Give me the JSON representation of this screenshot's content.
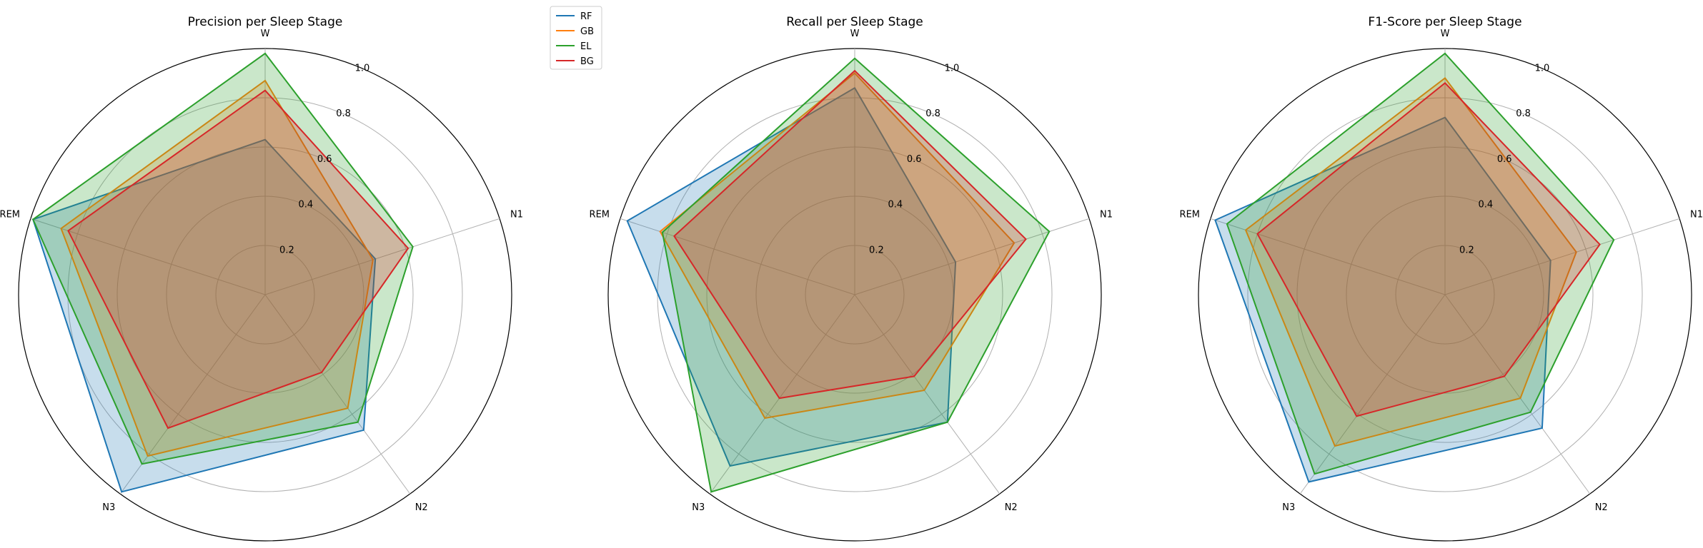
{
  "chart_data": [
    {
      "type": "radar",
      "title": "Precision per Sleep Stage",
      "categories": [
        "W",
        "N1",
        "N2",
        "N3",
        "REM"
      ],
      "rlim": [
        0,
        1.0
      ],
      "rticks": [
        "0.2",
        "0.4",
        "0.6",
        "0.8",
        "1.0"
      ],
      "series": [
        {
          "name": "RF",
          "color": "#1f77b4",
          "values": [
            0.63,
            0.47,
            0.68,
            0.99,
            0.99
          ]
        },
        {
          "name": "GB",
          "color": "#ff7f0e",
          "values": [
            0.87,
            0.46,
            0.57,
            0.81,
            0.87
          ]
        },
        {
          "name": "EL",
          "color": "#2ca02c",
          "values": [
            0.98,
            0.63,
            0.64,
            0.85,
            0.99
          ]
        },
        {
          "name": "BG",
          "color": "#d62728",
          "values": [
            0.83,
            0.61,
            0.39,
            0.67,
            0.84
          ]
        }
      ]
    },
    {
      "type": "radar",
      "title": "Recall per Sleep Stage",
      "categories": [
        "W",
        "N1",
        "N2",
        "N3",
        "REM"
      ],
      "rlim": [
        0,
        1.0
      ],
      "rticks": [
        "0.2",
        "0.4",
        "0.6",
        "0.8",
        "1.0"
      ],
      "series": [
        {
          "name": "RF",
          "color": "#1f77b4",
          "values": [
            0.84,
            0.43,
            0.64,
            0.86,
            0.97
          ]
        },
        {
          "name": "GB",
          "color": "#ff7f0e",
          "values": [
            0.9,
            0.68,
            0.48,
            0.62,
            0.83
          ]
        },
        {
          "name": "EL",
          "color": "#2ca02c",
          "values": [
            0.96,
            0.83,
            0.64,
            0.99,
            0.82
          ]
        },
        {
          "name": "BG",
          "color": "#d62728",
          "values": [
            0.91,
            0.73,
            0.41,
            0.52,
            0.77
          ]
        }
      ]
    },
    {
      "type": "radar",
      "title": "F1-Score per Sleep Stage",
      "categories": [
        "W",
        "N1",
        "N2",
        "N3",
        "REM"
      ],
      "rlim": [
        0,
        1.0
      ],
      "rticks": [
        "0.2",
        "0.4",
        "0.6",
        "0.8",
        "1.0"
      ],
      "series": [
        {
          "name": "RF",
          "color": "#1f77b4",
          "values": [
            0.72,
            0.45,
            0.67,
            0.94,
            0.98
          ]
        },
        {
          "name": "GB",
          "color": "#ff7f0e",
          "values": [
            0.88,
            0.56,
            0.52,
            0.76,
            0.85
          ]
        },
        {
          "name": "EL",
          "color": "#2ca02c",
          "values": [
            0.98,
            0.72,
            0.59,
            0.9,
            0.93
          ]
        },
        {
          "name": "BG",
          "color": "#d62728",
          "values": [
            0.86,
            0.66,
            0.41,
            0.61,
            0.8
          ]
        }
      ]
    }
  ],
  "legend": {
    "position": "upper-left",
    "entries": [
      {
        "name": "RF",
        "color": "#1f77b4"
      },
      {
        "name": "GB",
        "color": "#ff7f0e"
      },
      {
        "name": "EL",
        "color": "#2ca02c"
      },
      {
        "name": "BG",
        "color": "#d62728"
      }
    ]
  }
}
